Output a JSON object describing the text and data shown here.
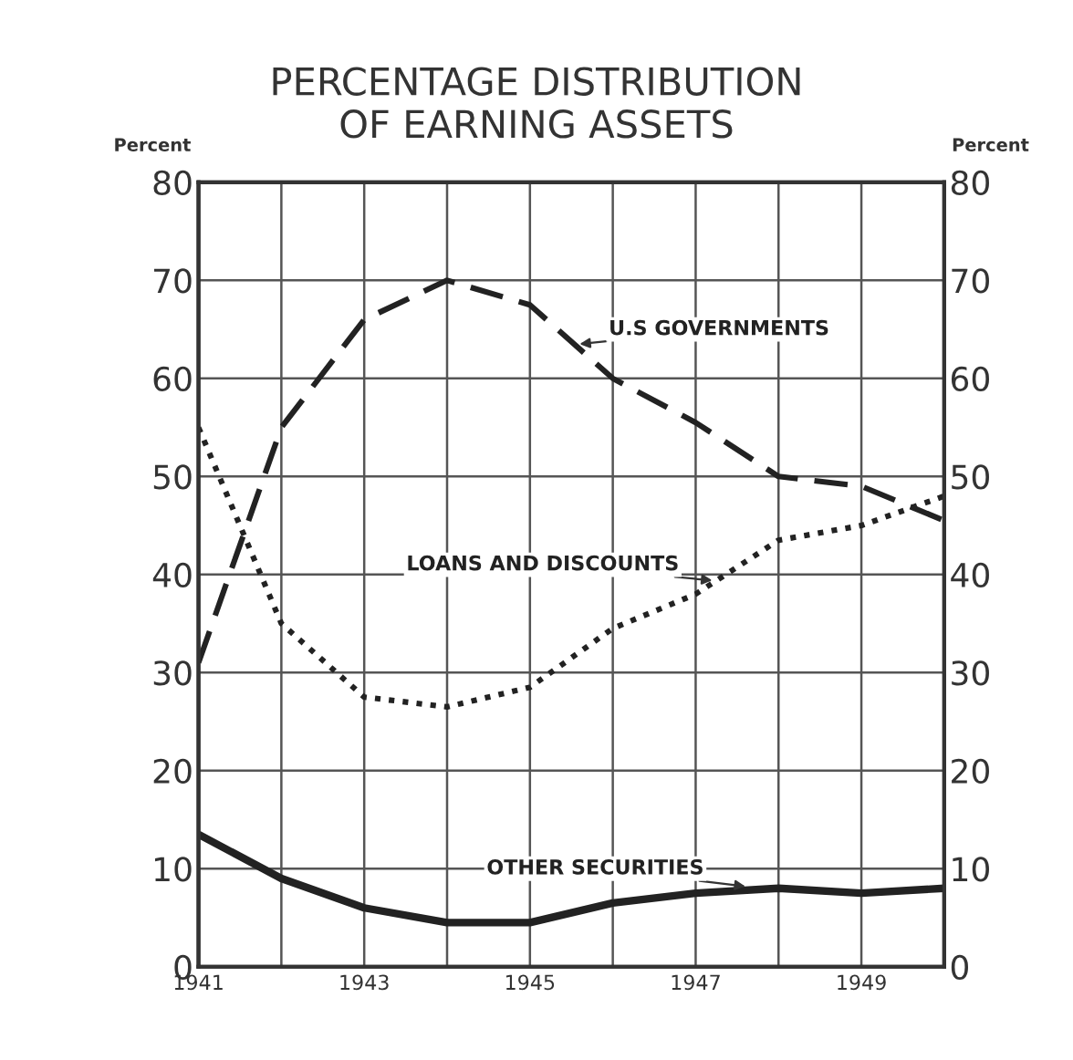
{
  "chart_data": {
    "type": "line",
    "title": "PERCENTAGE DISTRIBUTION\nOF EARNING ASSETS",
    "ylabel": "Percent",
    "y2label": "Percent",
    "x": [
      1941,
      1942,
      1943,
      1944,
      1945,
      1946,
      1947,
      1948,
      1949,
      1950
    ],
    "xlim": [
      1941,
      1950
    ],
    "xticks": [
      1941,
      {
        "value": 1942,
        "label": null
      },
      1943,
      {
        "value": 1944,
        "label": null
      },
      1945,
      {
        "value": 1946,
        "label": null
      },
      1947,
      {
        "value": 1948,
        "label": null
      },
      1949,
      {
        "value": 1950,
        "label": null
      }
    ],
    "ylim": [
      0,
      80
    ],
    "yticks": [
      0,
      10,
      20,
      30,
      40,
      50,
      60,
      70,
      80
    ],
    "y2lim": [
      0,
      80
    ],
    "y2ticks": [
      0,
      10,
      20,
      30,
      40,
      50,
      60,
      70,
      80
    ],
    "grid": true,
    "legend": false,
    "marker": "none",
    "series": [
      {
        "name": "U.S GOVERNMENTS",
        "color": "#222222",
        "line_style": "dashed",
        "values": [
          31,
          55,
          66,
          70,
          67.5,
          60,
          55.5,
          50,
          49,
          45.5
        ]
      },
      {
        "name": "LOANS AND DISCOUNTS",
        "color": "#222222",
        "line_style": "dotted",
        "values": [
          55,
          35,
          27.5,
          26.5,
          28.5,
          34.5,
          38,
          43.5,
          45,
          48
        ]
      },
      {
        "name": "OTHER SECURITIES",
        "color": "#222222",
        "line_style": "solid",
        "values": [
          13.5,
          9,
          6,
          4.5,
          4.5,
          6.5,
          7.5,
          8,
          7.5,
          8
        ]
      }
    ]
  }
}
